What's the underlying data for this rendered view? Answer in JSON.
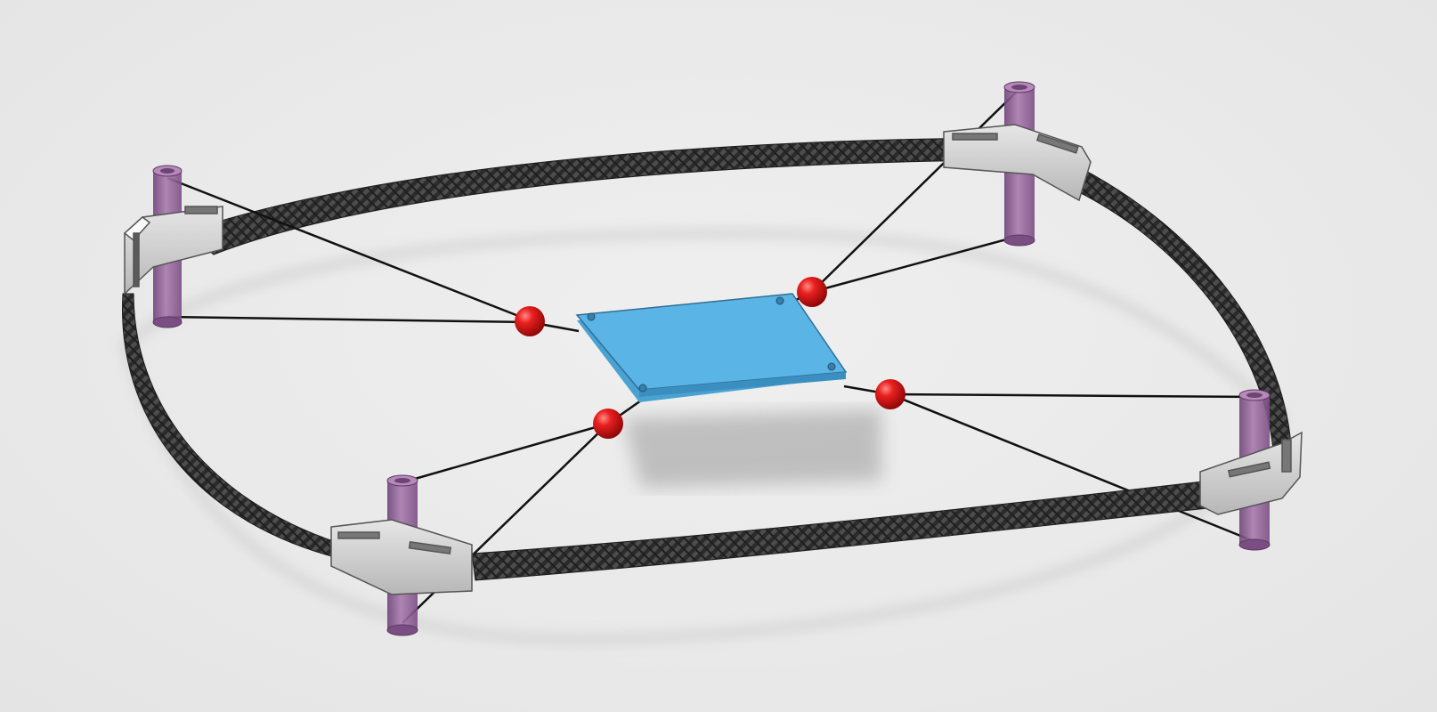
{
  "scene": {
    "background_color": "#e9e9e9",
    "model": {
      "hoop_material": "carbon-fiber",
      "plate_color": "#5ab4e5",
      "node_color": "#e0141b",
      "post_color": "#8e5b96",
      "clamp_color": "#c9c9c9",
      "wire_color": "#111111",
      "post_count": 4,
      "clamp_count": 4,
      "node_count": 4
    }
  }
}
